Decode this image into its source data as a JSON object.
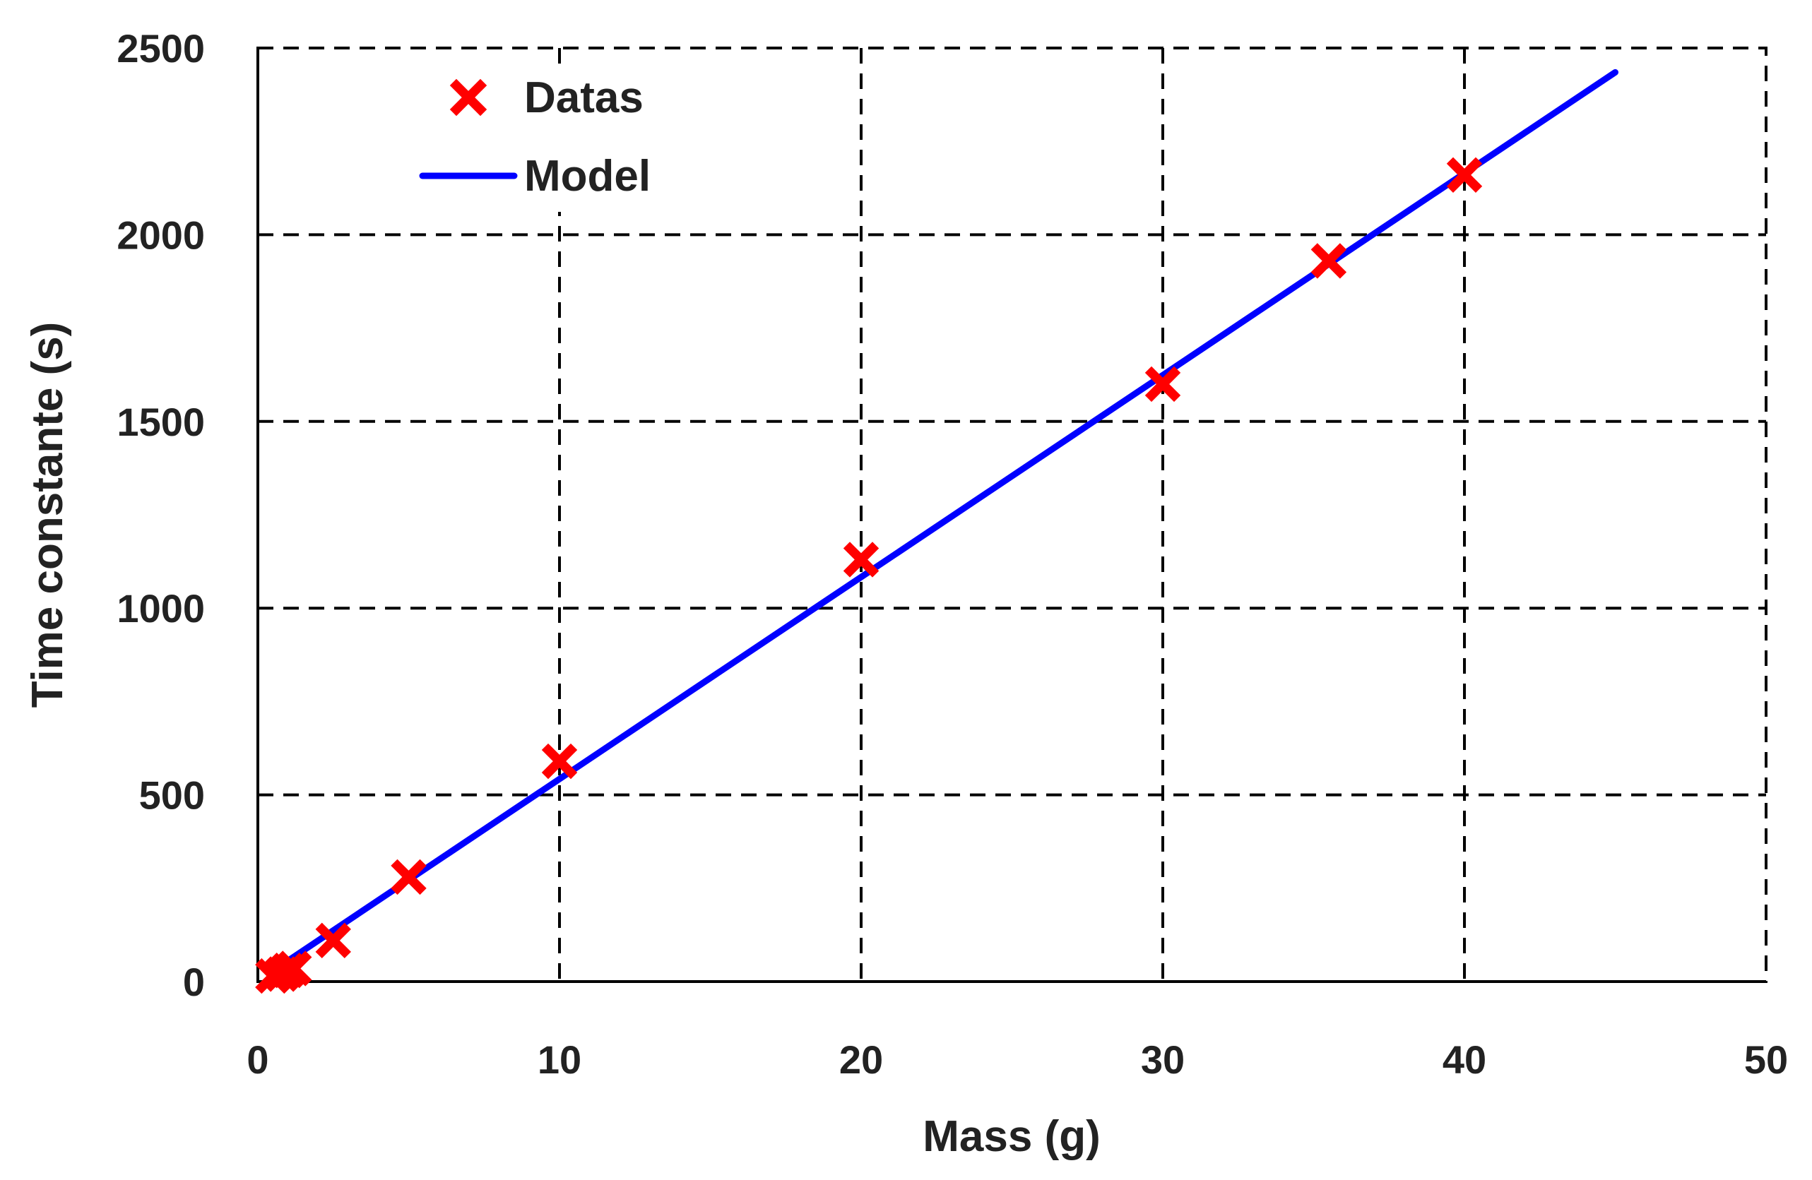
{
  "chart_data": {
    "type": "scatter",
    "title": "",
    "xlabel": "Mass (g)",
    "ylabel": "Time constante (s)",
    "xlim": [
      0,
      50
    ],
    "ylim": [
      0,
      2500
    ],
    "xticks": [
      0,
      10,
      20,
      30,
      40,
      50
    ],
    "yticks": [
      0,
      500,
      1000,
      1500,
      2000,
      2500
    ],
    "xtick_labels": [
      "0",
      "10",
      "20",
      "30",
      "40",
      "50"
    ],
    "ytick_labels": [
      "0",
      "500",
      "1000",
      "1500",
      "2000",
      "2500"
    ],
    "grid": true,
    "legend_position": "top-left",
    "series": [
      {
        "name": "Datas",
        "kind": "markers",
        "marker": "x",
        "color": "#ff0000",
        "x": [
          0.5,
          0.8,
          1.0,
          1.2,
          2.5,
          5.0,
          10.0,
          20.0,
          30.0,
          35.5,
          40.0
        ],
        "y": [
          15,
          20,
          30,
          35,
          110,
          280,
          590,
          1130,
          1600,
          1930,
          2160
        ]
      },
      {
        "name": "Model",
        "kind": "line",
        "color": "#0000ff",
        "x": [
          0.8,
          45.0
        ],
        "y": [
          45,
          2435
        ]
      }
    ]
  }
}
